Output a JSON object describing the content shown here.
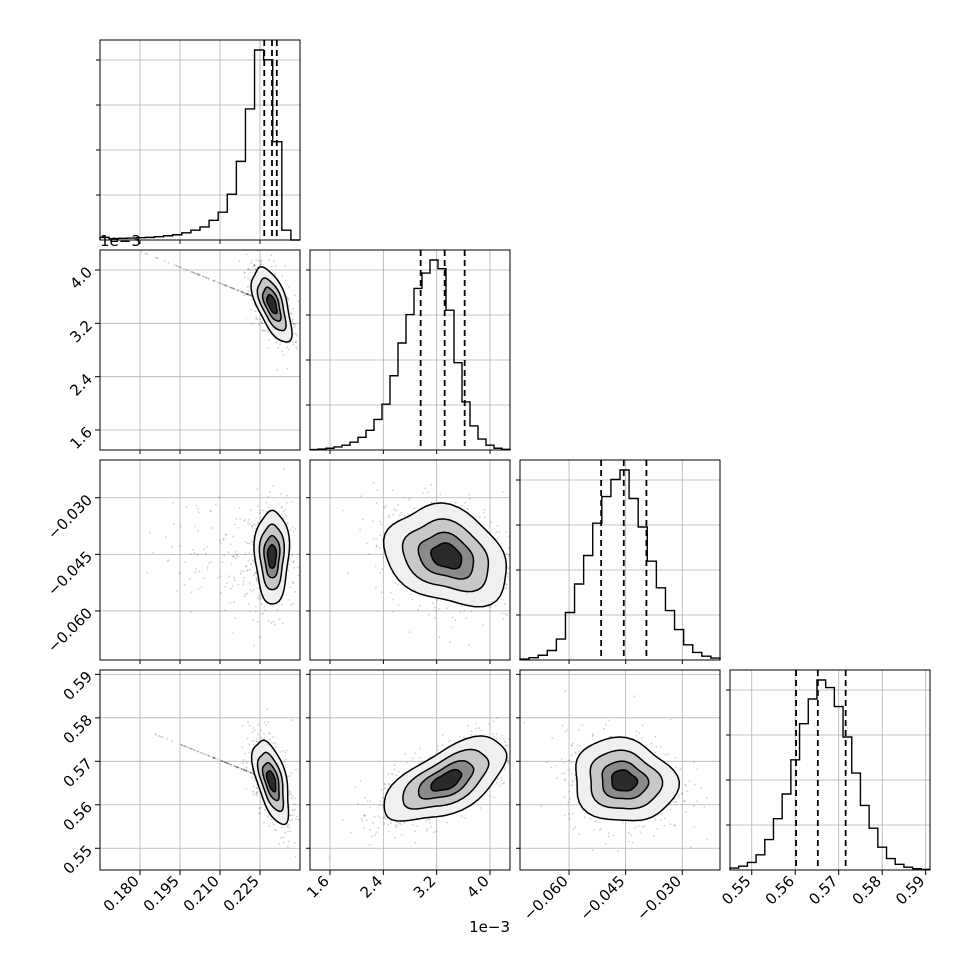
{
  "chart_data": {
    "type": "corner",
    "dimensions": [
      {
        "index": 0,
        "range": [
          0.165,
          0.24
        ],
        "ticks": [
          0.18,
          0.195,
          0.21,
          0.225
        ],
        "tick_labels": [
          "0.180",
          "0.195",
          "0.210",
          "0.225"
        ],
        "offset_label": ""
      },
      {
        "index": 1,
        "range": [
          1.3,
          4.3
        ],
        "ticks": [
          1.6,
          2.4,
          3.2,
          4.0
        ],
        "tick_labels": [
          "1.6",
          "2.4",
          "3.2",
          "4.0"
        ],
        "offset_label": "1e−3"
      },
      {
        "index": 2,
        "range": [
          -0.073,
          -0.02
        ],
        "ticks": [
          -0.06,
          -0.045,
          -0.03
        ],
        "tick_labels": [
          "−0.060",
          "−0.045",
          "−0.030"
        ],
        "offset_label": ""
      },
      {
        "index": 3,
        "range": [
          0.545,
          0.591
        ],
        "ticks": [
          0.55,
          0.56,
          0.57,
          0.58,
          0.59
        ],
        "tick_labels": [
          "0.55",
          "0.56",
          "0.57",
          "0.58",
          "0.59"
        ],
        "offset_label": ""
      }
    ],
    "histograms": [
      {
        "dim": 0,
        "edges_range": [
          0.165,
          0.24
        ],
        "counts": [
          0.8,
          0.4,
          0.5,
          0.6,
          0.7,
          0.8,
          1,
          1.3,
          1.6,
          2.2,
          3,
          4,
          6,
          8.5,
          14,
          24,
          40,
          58,
          55,
          30,
          3,
          0
        ],
        "quantiles": [
          0.2266,
          0.2295,
          0.2313
        ]
      },
      {
        "dim": 1,
        "edges_range": [
          1.3,
          4.3
        ],
        "counts": [
          0.2,
          0.4,
          0.8,
          1.4,
          2.2,
          3.6,
          5.8,
          9,
          14,
          21,
          34,
          49,
          62,
          74,
          81,
          87,
          83,
          64,
          40,
          22,
          11,
          5,
          2.2,
          0.8,
          0.3
        ],
        "quantiles": [
          2.96,
          3.32,
          3.62
        ]
      },
      {
        "dim": 2,
        "edges_range": [
          -0.073,
          -0.02
        ],
        "counts": [
          0.5,
          1.2,
          2.5,
          5,
          11,
          25,
          40,
          55,
          72,
          86,
          95,
          100,
          85,
          70,
          52,
          38,
          26,
          16,
          8,
          4,
          2,
          1
        ],
        "quantiles": [
          -0.0515,
          -0.0455,
          -0.0395
        ]
      },
      {
        "dim": 3,
        "edges_range": [
          0.545,
          0.591
        ],
        "counts": [
          1,
          2,
          4,
          8,
          16,
          27,
          40,
          58,
          77,
          90,
          100,
          96,
          86,
          70,
          51,
          34,
          22,
          12,
          6,
          3,
          1.5,
          0.7,
          0.3
        ],
        "quantiles": [
          0.5602,
          0.5652,
          0.5716
        ]
      },
      {
        "note": "hist y-axis unlabeled"
      }
    ],
    "scatter_pairs": [
      {
        "row": 1,
        "col": 0,
        "center": [
          0.2295,
          3.49
        ],
        "sd": [
          0.0037,
          0.28
        ],
        "rho": -0.6
      },
      {
        "row": 2,
        "col": 0,
        "center": [
          0.2295,
          -0.0455
        ],
        "sd": [
          0.0032,
          0.0062
        ],
        "rho": 0.0
      },
      {
        "row": 2,
        "col": 1,
        "center": [
          3.35,
          -0.0455
        ],
        "sd": [
          0.46,
          0.0066
        ],
        "rho": -0.25
      },
      {
        "row": 3,
        "col": 0,
        "center": [
          0.2293,
          0.5655
        ],
        "sd": [
          0.0034,
          0.0048
        ],
        "rho": -0.55
      },
      {
        "row": 3,
        "col": 1,
        "center": [
          3.35,
          0.5655
        ],
        "sd": [
          0.46,
          0.0048
        ],
        "rho": 0.6
      },
      {
        "row": 3,
        "col": 2,
        "center": [
          -0.0455,
          0.5655
        ],
        "sd": [
          0.0068,
          0.0048
        ],
        "rho": -0.1
      }
    ],
    "grid": true
  }
}
